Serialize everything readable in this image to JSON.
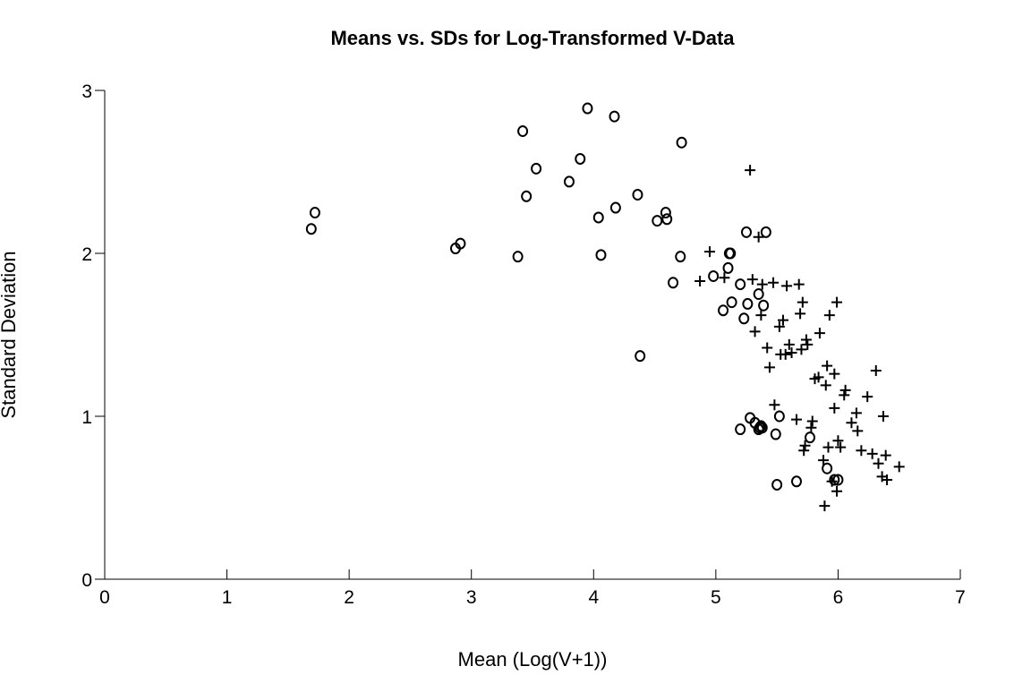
{
  "chart_data": {
    "type": "scatter",
    "title": "Means vs. SDs for Log-Transformed V-Data",
    "xlabel": "Mean (Log(V+1))",
    "ylabel": "Standard Deviation",
    "xlim": [
      0,
      7
    ],
    "ylim": [
      0,
      3
    ],
    "xticks": [
      "0",
      "1",
      "2",
      "3",
      "4",
      "5",
      "6",
      "7"
    ],
    "yticks": [
      "0",
      "1",
      "2",
      "3"
    ],
    "grid": false,
    "legend": "none",
    "series": [
      {
        "marker": "circle",
        "color": "#000000",
        "points": [
          [
            1.69,
            2.15
          ],
          [
            1.72,
            2.25
          ],
          [
            2.87,
            2.03
          ],
          [
            2.91,
            2.06
          ],
          [
            3.38,
            1.98
          ],
          [
            3.42,
            2.75
          ],
          [
            3.45,
            2.35
          ],
          [
            3.53,
            2.52
          ],
          [
            3.8,
            2.44
          ],
          [
            3.89,
            2.58
          ],
          [
            3.95,
            2.89
          ],
          [
            4.04,
            2.22
          ],
          [
            4.06,
            1.99
          ],
          [
            4.17,
            2.84
          ],
          [
            4.18,
            2.28
          ],
          [
            4.36,
            2.36
          ],
          [
            4.38,
            1.37
          ],
          [
            4.52,
            2.2
          ],
          [
            4.59,
            2.25
          ],
          [
            4.6,
            2.21
          ],
          [
            4.65,
            1.82
          ],
          [
            4.71,
            1.98
          ],
          [
            4.72,
            2.68
          ],
          [
            4.98,
            1.86
          ],
          [
            5.06,
            1.65
          ],
          [
            5.1,
            1.91
          ],
          [
            5.11,
            2.0
          ],
          [
            5.12,
            2.0
          ],
          [
            5.13,
            1.7
          ],
          [
            5.2,
            1.81
          ],
          [
            5.2,
            0.92
          ],
          [
            5.23,
            1.6
          ],
          [
            5.25,
            2.13
          ],
          [
            5.26,
            1.69
          ],
          [
            5.28,
            0.99
          ],
          [
            5.32,
            0.96
          ],
          [
            5.35,
            1.75
          ],
          [
            5.35,
            0.92
          ],
          [
            5.36,
            0.93
          ],
          [
            5.37,
            0.94
          ],
          [
            5.38,
            0.93
          ],
          [
            5.39,
            1.68
          ],
          [
            5.41,
            2.13
          ],
          [
            5.49,
            0.89
          ],
          [
            5.5,
            0.58
          ],
          [
            5.52,
            1.0
          ],
          [
            5.66,
            0.6
          ],
          [
            5.77,
            0.87
          ],
          [
            5.91,
            0.68
          ],
          [
            5.97,
            0.61
          ],
          [
            6.0,
            0.61
          ]
        ]
      },
      {
        "marker": "plus",
        "color": "#000000",
        "points": [
          [
            4.87,
            1.83
          ],
          [
            4.95,
            2.01
          ],
          [
            5.07,
            1.85
          ],
          [
            5.28,
            2.51
          ],
          [
            5.3,
            1.84
          ],
          [
            5.32,
            1.52
          ],
          [
            5.35,
            2.1
          ],
          [
            5.37,
            1.62
          ],
          [
            5.38,
            1.81
          ],
          [
            5.42,
            1.42
          ],
          [
            5.44,
            1.3
          ],
          [
            5.47,
            1.82
          ],
          [
            5.48,
            1.07
          ],
          [
            5.52,
            1.55
          ],
          [
            5.53,
            1.38
          ],
          [
            5.55,
            1.59
          ],
          [
            5.57,
            1.38
          ],
          [
            5.58,
            1.8
          ],
          [
            5.6,
            1.44
          ],
          [
            5.62,
            1.39
          ],
          [
            5.66,
            0.98
          ],
          [
            5.68,
            1.81
          ],
          [
            5.69,
            1.63
          ],
          [
            5.7,
            1.41
          ],
          [
            5.71,
            1.7
          ],
          [
            5.72,
            0.79
          ],
          [
            5.73,
            0.82
          ],
          [
            5.74,
            1.47
          ],
          [
            5.75,
            1.44
          ],
          [
            5.78,
            0.93
          ],
          [
            5.79,
            0.97
          ],
          [
            5.81,
            1.23
          ],
          [
            5.84,
            1.24
          ],
          [
            5.85,
            1.51
          ],
          [
            5.88,
            0.73
          ],
          [
            5.89,
            0.45
          ],
          [
            5.9,
            1.19
          ],
          [
            5.91,
            1.31
          ],
          [
            5.92,
            0.81
          ],
          [
            5.93,
            1.62
          ],
          [
            5.95,
            0.6
          ],
          [
            5.97,
            1.05
          ],
          [
            5.97,
            1.26
          ],
          [
            5.99,
            1.7
          ],
          [
            5.99,
            0.54
          ],
          [
            6.0,
            0.85
          ],
          [
            6.02,
            0.81
          ],
          [
            6.05,
            1.13
          ],
          [
            6.06,
            1.16
          ],
          [
            6.11,
            0.96
          ],
          [
            6.15,
            1.02
          ],
          [
            6.16,
            0.91
          ],
          [
            6.19,
            0.79
          ],
          [
            6.24,
            1.12
          ],
          [
            6.28,
            0.77
          ],
          [
            6.31,
            1.28
          ],
          [
            6.33,
            0.71
          ],
          [
            6.36,
            0.63
          ],
          [
            6.37,
            1.0
          ],
          [
            6.39,
            0.76
          ],
          [
            6.4,
            0.61
          ],
          [
            6.5,
            0.69
          ]
        ]
      }
    ]
  }
}
